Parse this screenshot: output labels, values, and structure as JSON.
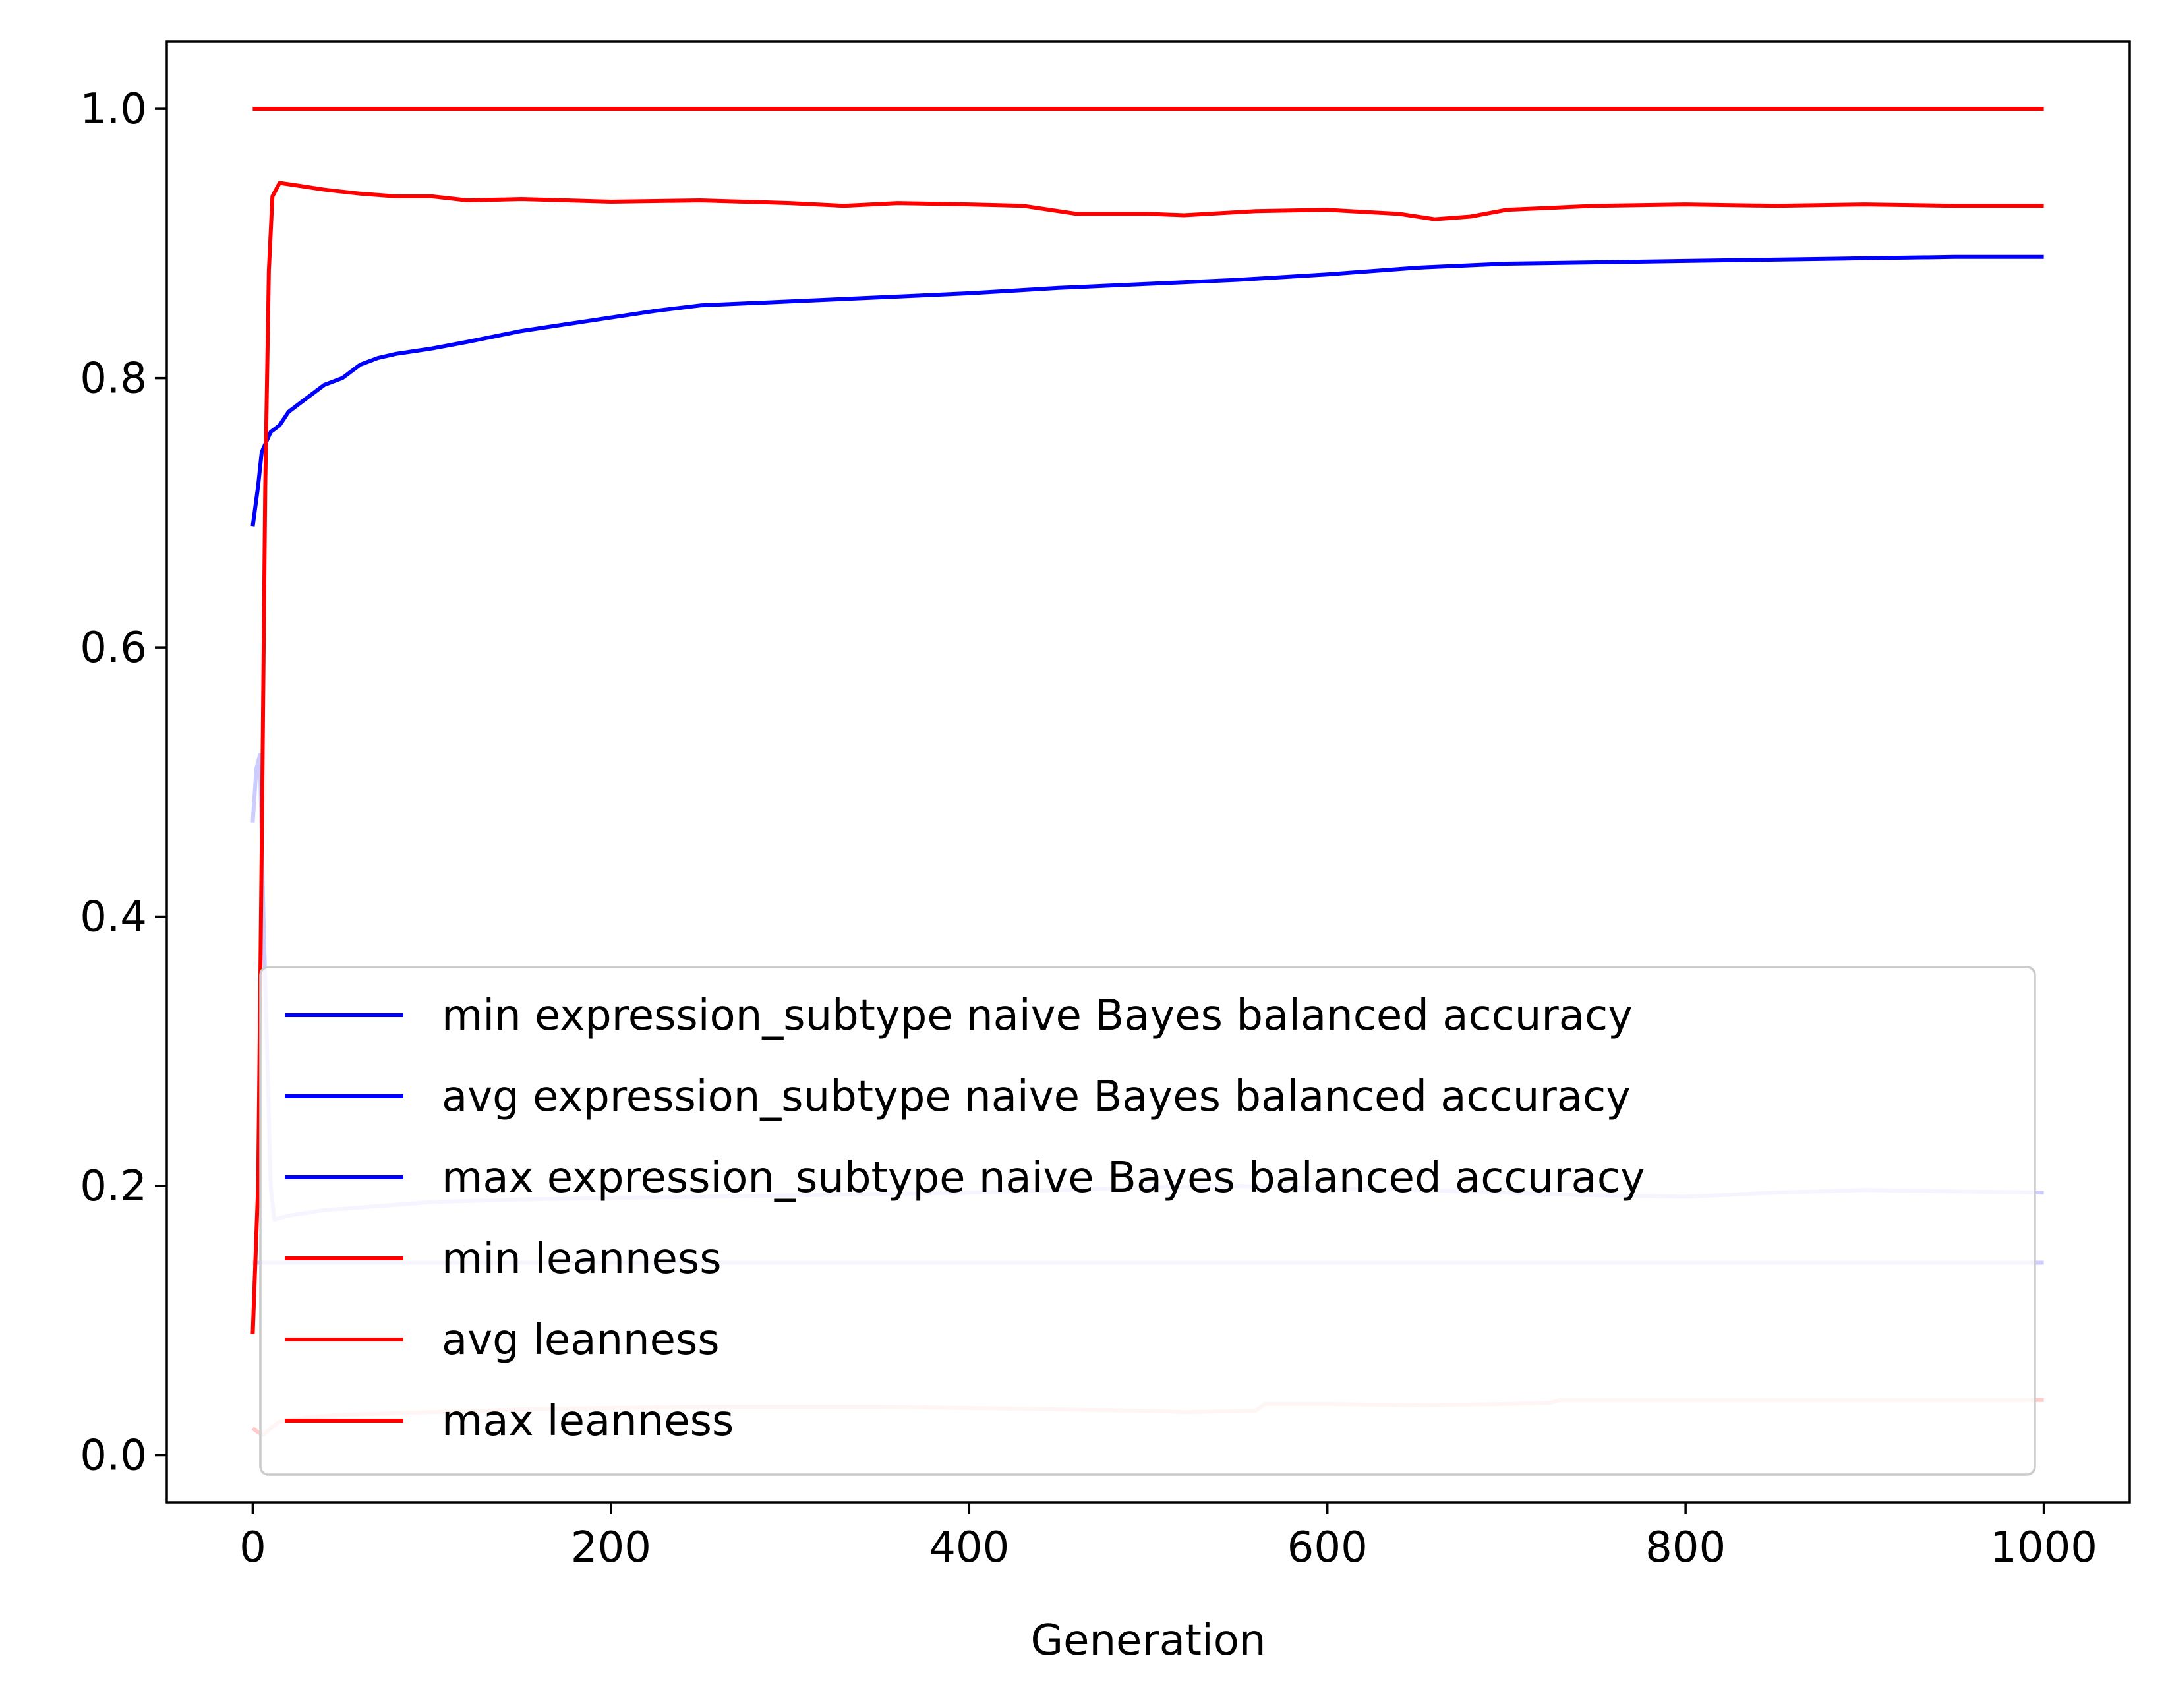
{
  "chart_data": {
    "type": "line",
    "xlabel": "Generation",
    "ylabel": "",
    "title": "",
    "xlim": [
      -48,
      1048
    ],
    "ylim": [
      -0.035,
      1.05
    ],
    "xticks": [
      0,
      200,
      400,
      600,
      800,
      1000
    ],
    "xtick_labels": [
      "0",
      "200",
      "400",
      "600",
      "800",
      "1000"
    ],
    "yticks": [
      0.0,
      0.2,
      0.4,
      0.6,
      0.8,
      1.0
    ],
    "ytick_labels": [
      "0.0",
      "0.2",
      "0.4",
      "0.6",
      "0.8",
      "1.0"
    ],
    "grid": false,
    "legend_position": "lower-right",
    "series": [
      {
        "name": "min expression_subtype naive Bayes balanced accuracy",
        "color": "#0000ff",
        "opacity": 0.2,
        "points": [
          [
            0,
            0.143
          ],
          [
            2,
            0.143
          ],
          [
            4,
            0.143
          ],
          [
            6,
            0.143
          ],
          [
            1000,
            0.143
          ]
        ]
      },
      {
        "name": "avg expression_subtype naive Bayes balanced accuracy",
        "color": "#0000ff",
        "opacity": 0.2,
        "points": [
          [
            0,
            0.47
          ],
          [
            2,
            0.51
          ],
          [
            4,
            0.52
          ],
          [
            6,
            0.4
          ],
          [
            8,
            0.3
          ],
          [
            10,
            0.2
          ],
          [
            12,
            0.175
          ],
          [
            20,
            0.178
          ],
          [
            40,
            0.182
          ],
          [
            60,
            0.184
          ],
          [
            80,
            0.186
          ],
          [
            100,
            0.188
          ],
          [
            150,
            0.19
          ],
          [
            200,
            0.191
          ],
          [
            250,
            0.192
          ],
          [
            300,
            0.193
          ],
          [
            350,
            0.194
          ],
          [
            400,
            0.195
          ],
          [
            450,
            0.197
          ],
          [
            500,
            0.199
          ],
          [
            550,
            0.2
          ],
          [
            600,
            0.198
          ],
          [
            650,
            0.197
          ],
          [
            700,
            0.195
          ],
          [
            750,
            0.193
          ],
          [
            800,
            0.192
          ],
          [
            850,
            0.195
          ],
          [
            900,
            0.197
          ],
          [
            950,
            0.196
          ],
          [
            1000,
            0.195
          ]
        ]
      },
      {
        "name": "max expression_subtype naive Bayes balanced accuracy",
        "color": "#0000ff",
        "opacity": 1,
        "points": [
          [
            0,
            0.69
          ],
          [
            3,
            0.72
          ],
          [
            5,
            0.745
          ],
          [
            10,
            0.76
          ],
          [
            15,
            0.765
          ],
          [
            20,
            0.775
          ],
          [
            30,
            0.785
          ],
          [
            40,
            0.795
          ],
          [
            50,
            0.8
          ],
          [
            60,
            0.81
          ],
          [
            70,
            0.815
          ],
          [
            80,
            0.818
          ],
          [
            100,
            0.822
          ],
          [
            120,
            0.827
          ],
          [
            150,
            0.835
          ],
          [
            175,
            0.84
          ],
          [
            200,
            0.845
          ],
          [
            225,
            0.85
          ],
          [
            250,
            0.854
          ],
          [
            300,
            0.857
          ],
          [
            350,
            0.86
          ],
          [
            400,
            0.863
          ],
          [
            450,
            0.867
          ],
          [
            500,
            0.87
          ],
          [
            550,
            0.873
          ],
          [
            600,
            0.877
          ],
          [
            650,
            0.882
          ],
          [
            700,
            0.885
          ],
          [
            750,
            0.886
          ],
          [
            800,
            0.887
          ],
          [
            850,
            0.888
          ],
          [
            900,
            0.889
          ],
          [
            950,
            0.89
          ],
          [
            1000,
            0.89
          ]
        ]
      },
      {
        "name": "min leanness",
        "color": "#ff0000",
        "opacity": 0.2,
        "points": [
          [
            0,
            0.02
          ],
          [
            3,
            0.017
          ],
          [
            6,
            0.015
          ],
          [
            10,
            0.02
          ],
          [
            15,
            0.025
          ],
          [
            30,
            0.028
          ],
          [
            50,
            0.03
          ],
          [
            100,
            0.032
          ],
          [
            150,
            0.034
          ],
          [
            200,
            0.035
          ],
          [
            250,
            0.036
          ],
          [
            300,
            0.036
          ],
          [
            350,
            0.036
          ],
          [
            400,
            0.035
          ],
          [
            450,
            0.034
          ],
          [
            500,
            0.033
          ],
          [
            520,
            0.032
          ],
          [
            560,
            0.033
          ],
          [
            565,
            0.038
          ],
          [
            600,
            0.038
          ],
          [
            650,
            0.037
          ],
          [
            700,
            0.038
          ],
          [
            725,
            0.039
          ],
          [
            730,
            0.041
          ],
          [
            800,
            0.041
          ],
          [
            900,
            0.041
          ],
          [
            1000,
            0.041
          ]
        ]
      },
      {
        "name": "avg leanness",
        "color": "#ff0000",
        "opacity": 1,
        "points": [
          [
            0,
            0.09
          ],
          [
            3,
            0.2
          ],
          [
            5,
            0.45
          ],
          [
            7,
            0.72
          ],
          [
            9,
            0.88
          ],
          [
            11,
            0.935
          ],
          [
            15,
            0.945
          ],
          [
            25,
            0.943
          ],
          [
            40,
            0.94
          ],
          [
            60,
            0.937
          ],
          [
            80,
            0.935
          ],
          [
            100,
            0.935
          ],
          [
            120,
            0.932
          ],
          [
            150,
            0.933
          ],
          [
            200,
            0.931
          ],
          [
            250,
            0.932
          ],
          [
            300,
            0.93
          ],
          [
            330,
            0.928
          ],
          [
            360,
            0.93
          ],
          [
            400,
            0.929
          ],
          [
            430,
            0.928
          ],
          [
            460,
            0.922
          ],
          [
            500,
            0.922
          ],
          [
            520,
            0.921
          ],
          [
            560,
            0.924
          ],
          [
            600,
            0.925
          ],
          [
            640,
            0.922
          ],
          [
            660,
            0.918
          ],
          [
            680,
            0.92
          ],
          [
            700,
            0.925
          ],
          [
            750,
            0.928
          ],
          [
            800,
            0.929
          ],
          [
            850,
            0.928
          ],
          [
            900,
            0.929
          ],
          [
            950,
            0.928
          ],
          [
            1000,
            0.928
          ]
        ]
      },
      {
        "name": "max leanness",
        "color": "#ff0000",
        "opacity": 1,
        "points": [
          [
            0,
            1.0
          ],
          [
            1000,
            1.0
          ]
        ]
      }
    ]
  }
}
